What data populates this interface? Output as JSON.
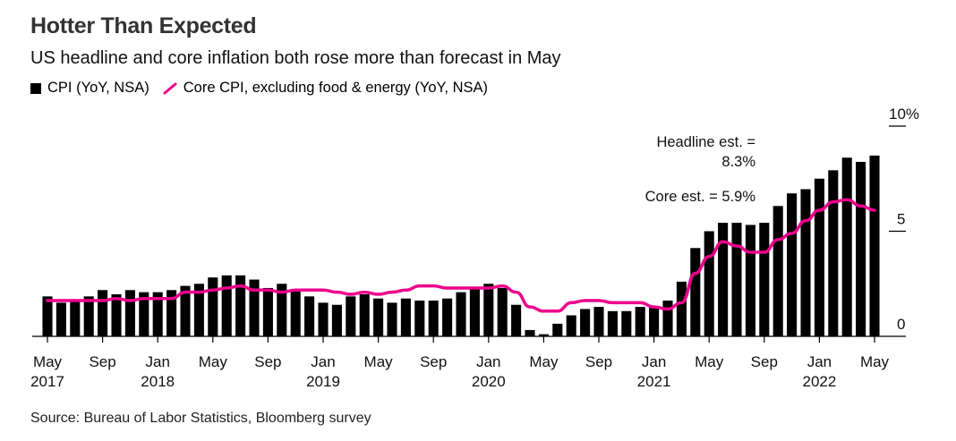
{
  "header": {
    "title": "Hotter Than Expected",
    "subtitle": "US headline and core inflation both rose more than forecast in May"
  },
  "legend": [
    {
      "label": "CPI (YoY, NSA)",
      "kind": "bar",
      "color": "#000000"
    },
    {
      "label": "Core CPI, excluding food & energy (YoY, NSA)",
      "kind": "line",
      "color": "#ec008c"
    }
  ],
  "annotations": {
    "headline_est": [
      "Headline est. =",
      "8.3%"
    ],
    "core_est": "Core est. = 5.9%"
  },
  "source": "Source: Bureau of Labor Statistics, Bloomberg survey",
  "chart_data": {
    "type": "bar",
    "title": "Hotter Than Expected",
    "subtitle": "US headline and core inflation both rose more than forecast in May",
    "x": [
      "2017-05",
      "2017-06",
      "2017-07",
      "2017-08",
      "2017-09",
      "2017-10",
      "2017-11",
      "2017-12",
      "2018-01",
      "2018-02",
      "2018-03",
      "2018-04",
      "2018-05",
      "2018-06",
      "2018-07",
      "2018-08",
      "2018-09",
      "2018-10",
      "2018-11",
      "2018-12",
      "2019-01",
      "2019-02",
      "2019-03",
      "2019-04",
      "2019-05",
      "2019-06",
      "2019-07",
      "2019-08",
      "2019-09",
      "2019-10",
      "2019-11",
      "2019-12",
      "2020-01",
      "2020-02",
      "2020-03",
      "2020-04",
      "2020-05",
      "2020-06",
      "2020-07",
      "2020-08",
      "2020-09",
      "2020-10",
      "2020-11",
      "2020-12",
      "2021-01",
      "2021-02",
      "2021-03",
      "2021-04",
      "2021-05",
      "2021-06",
      "2021-07",
      "2021-08",
      "2021-09",
      "2021-10",
      "2021-11",
      "2021-12",
      "2022-01",
      "2022-02",
      "2022-03",
      "2022-04",
      "2022-05"
    ],
    "series": [
      {
        "name": "CPI (YoY, NSA)",
        "type": "bar",
        "color": "#000000",
        "values": [
          1.9,
          1.6,
          1.7,
          1.9,
          2.2,
          2.0,
          2.2,
          2.1,
          2.1,
          2.2,
          2.4,
          2.5,
          2.8,
          2.9,
          2.9,
          2.7,
          2.3,
          2.5,
          2.2,
          1.9,
          1.6,
          1.5,
          1.9,
          2.0,
          1.8,
          1.6,
          1.8,
          1.7,
          1.7,
          1.8,
          2.1,
          2.3,
          2.5,
          2.3,
          1.5,
          0.3,
          0.1,
          0.6,
          1.0,
          1.3,
          1.4,
          1.2,
          1.2,
          1.4,
          1.4,
          1.7,
          2.6,
          4.2,
          5.0,
          5.4,
          5.4,
          5.3,
          5.4,
          6.2,
          6.8,
          7.0,
          7.5,
          7.9,
          8.5,
          8.3,
          8.6
        ]
      },
      {
        "name": "Core CPI, excluding food & energy (YoY, NSA)",
        "type": "line",
        "color": "#ec008c",
        "values": [
          1.7,
          1.7,
          1.7,
          1.7,
          1.7,
          1.8,
          1.7,
          1.8,
          1.8,
          1.8,
          2.1,
          2.1,
          2.2,
          2.3,
          2.4,
          2.2,
          2.2,
          2.1,
          2.2,
          2.2,
          2.2,
          2.1,
          2.0,
          2.1,
          2.0,
          2.1,
          2.2,
          2.4,
          2.4,
          2.3,
          2.3,
          2.3,
          2.3,
          2.4,
          2.1,
          1.4,
          1.2,
          1.2,
          1.6,
          1.7,
          1.7,
          1.6,
          1.6,
          1.6,
          1.4,
          1.3,
          1.6,
          3.0,
          3.8,
          4.5,
          4.3,
          4.0,
          4.0,
          4.6,
          4.9,
          5.5,
          6.0,
          6.4,
          6.5,
          6.2,
          6.0
        ]
      }
    ],
    "ylim": [
      0,
      10
    ],
    "yticks": [
      0,
      5,
      10
    ],
    "ytick_labels": [
      "0",
      "5",
      "10%"
    ],
    "xtick_labels": [
      {
        "at": "2017-05",
        "lines": [
          "May",
          "2017"
        ]
      },
      {
        "at": "2017-09",
        "lines": [
          "Sep",
          ""
        ]
      },
      {
        "at": "2018-01",
        "lines": [
          "Jan",
          "2018"
        ]
      },
      {
        "at": "2018-05",
        "lines": [
          "May",
          ""
        ]
      },
      {
        "at": "2018-09",
        "lines": [
          "Sep",
          ""
        ]
      },
      {
        "at": "2019-01",
        "lines": [
          "Jan",
          "2019"
        ]
      },
      {
        "at": "2019-05",
        "lines": [
          "May",
          ""
        ]
      },
      {
        "at": "2019-09",
        "lines": [
          "Sep",
          ""
        ]
      },
      {
        "at": "2020-01",
        "lines": [
          "Jan",
          "2020"
        ]
      },
      {
        "at": "2020-05",
        "lines": [
          "May",
          ""
        ]
      },
      {
        "at": "2020-09",
        "lines": [
          "Sep",
          ""
        ]
      },
      {
        "at": "2021-01",
        "lines": [
          "Jan",
          "2021"
        ]
      },
      {
        "at": "2021-05",
        "lines": [
          "May",
          ""
        ]
      },
      {
        "at": "2021-09",
        "lines": [
          "Sep",
          ""
        ]
      },
      {
        "at": "2022-01",
        "lines": [
          "Jan",
          "2022"
        ]
      },
      {
        "at": "2022-05",
        "lines": [
          "May",
          ""
        ]
      }
    ],
    "grid": false,
    "legend_position": "top-left",
    "y_axis_side": "right"
  }
}
